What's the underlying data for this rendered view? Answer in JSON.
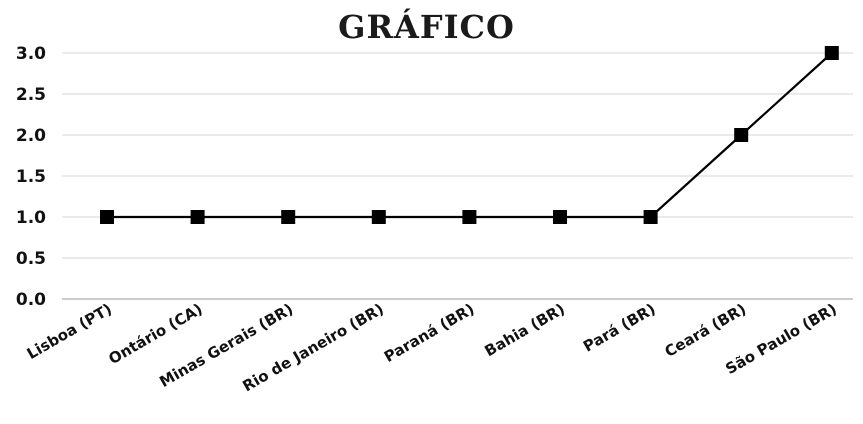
{
  "chart_data": {
    "type": "line",
    "title": "GRÁFICO",
    "xlabel": "",
    "ylabel": "",
    "categories": [
      "Lisboa (PT)",
      "Ontário (CA)",
      "Minas Gerais (BR)",
      "Rio de Janeiro (BR)",
      "Paraná (BR)",
      "Bahia (BR)",
      "Pará (BR)",
      "Ceará (BR)",
      "São Paulo (BR)"
    ],
    "series": [
      {
        "values": [
          1,
          1,
          1,
          1,
          1,
          1,
          1,
          2,
          3
        ]
      }
    ],
    "ylim": [
      0,
      3
    ],
    "yticks": [
      "0.0",
      "0.5",
      "1.0",
      "1.5",
      "2.0",
      "2.5",
      "3.0"
    ],
    "grid": true,
    "line_color": "#000000",
    "marker": "square"
  }
}
